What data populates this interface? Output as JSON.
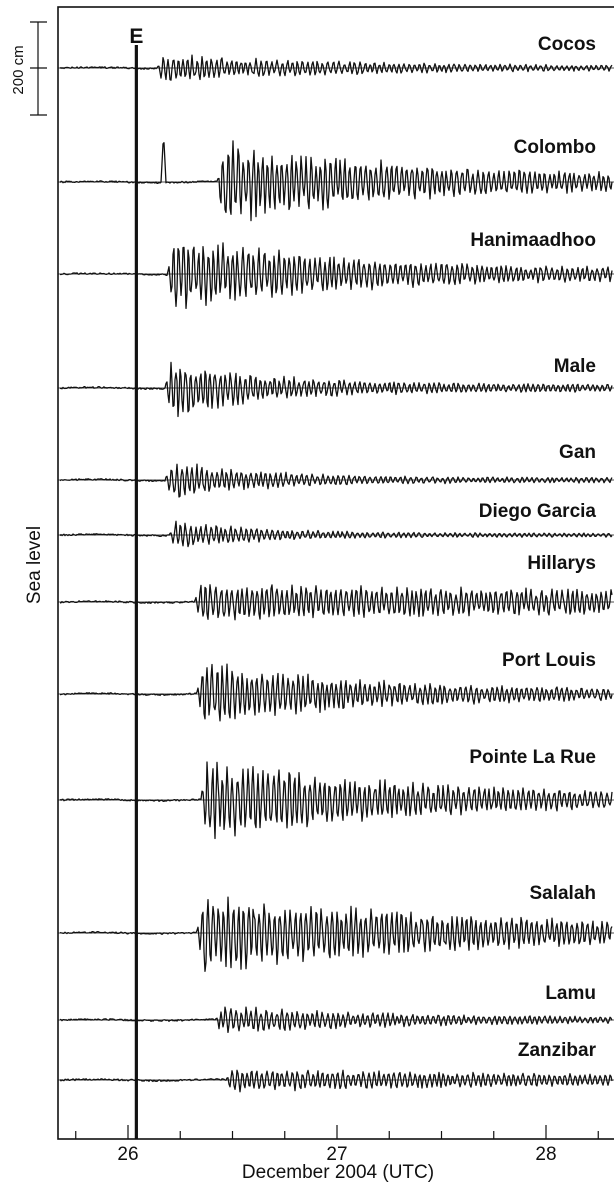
{
  "chart_data": {
    "type": "line",
    "title": "",
    "xlabel": "December  2004 (UTC)",
    "ylabel": "Sea level",
    "x_ticks": [
      26,
      27,
      28
    ],
    "xlim": [
      25.67,
      28.33
    ],
    "scale_bar": {
      "label": "200 cm",
      "value_cm": 200
    },
    "event_marker": {
      "label": "E",
      "x": 26.04
    },
    "colors": {
      "trace": "#111111",
      "axis": "#111111",
      "background": "#ffffff"
    },
    "series": [
      {
        "name": "Cocos",
        "arrival": 26.14,
        "amp_cm": 55,
        "decay": 0.9
      },
      {
        "name": "Colombo",
        "arrival": 26.43,
        "amp_cm": 160,
        "decay": 0.9,
        "precursor": 26.17
      },
      {
        "name": "Hanimaadhoo",
        "arrival": 26.19,
        "amp_cm": 150,
        "decay": 0.8
      },
      {
        "name": "Male",
        "arrival": 26.18,
        "amp_cm": 120,
        "decay": 0.45
      },
      {
        "name": "Gan",
        "arrival": 26.18,
        "amp_cm": 85,
        "decay": 0.4
      },
      {
        "name": "Diego Garcia",
        "arrival": 26.2,
        "amp_cm": 60,
        "decay": 0.4
      },
      {
        "name": "Hillarys",
        "arrival": 26.32,
        "amp_cm": 70,
        "decay": 4.0
      },
      {
        "name": "Port Louis",
        "arrival": 26.33,
        "amp_cm": 125,
        "decay": 0.8
      },
      {
        "name": "Pointe La Rue",
        "arrival": 26.35,
        "amp_cm": 165,
        "decay": 0.9
      },
      {
        "name": "Salalah",
        "arrival": 26.33,
        "amp_cm": 160,
        "decay": 1.2
      },
      {
        "name": "Lamu",
        "arrival": 26.42,
        "amp_cm": 55,
        "decay": 0.9
      },
      {
        "name": "Zanzibar",
        "arrival": 26.47,
        "amp_cm": 45,
        "decay": 2.0
      }
    ]
  }
}
